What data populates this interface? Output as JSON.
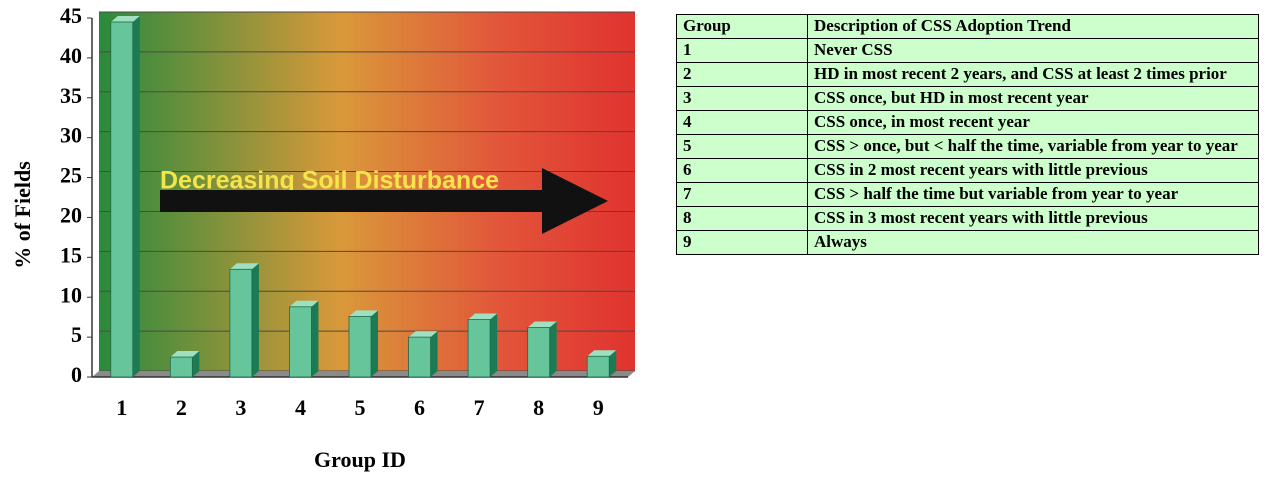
{
  "chart_data": {
    "type": "bar",
    "annotation": "Decreasing Soil Disturbance",
    "x_label": "Group ID",
    "y_label": "% of  Fields",
    "categories": [
      "1",
      "2",
      "3",
      "4",
      "5",
      "6",
      "7",
      "8",
      "9"
    ],
    "values": [
      44.5,
      2.5,
      13.5,
      8.8,
      7.6,
      5,
      7.2,
      6.2,
      2.6
    ],
    "color": "#66c59a",
    "ylim": [
      0,
      45
    ],
    "yticks": [
      0,
      5,
      10,
      15,
      20,
      25,
      30,
      35,
      40,
      45
    ],
    "grid": true
  },
  "table": {
    "header": [
      "Group",
      "Description of CSS Adoption Trend"
    ],
    "rows": [
      [
        "1",
        "Never CSS"
      ],
      [
        "2",
        "HD in most recent 2 years, and CSS at least 2 times prior"
      ],
      [
        "3",
        "CSS once, but HD in most recent year"
      ],
      [
        "4",
        "CSS once, in most recent year"
      ],
      [
        "5",
        "CSS > once, but < half the time, variable from year to year"
      ],
      [
        "6",
        "CSS in 2 most recent years with little previous"
      ],
      [
        "7",
        "CSS > half the time but variable from year to year"
      ],
      [
        "8",
        "CSS in 3 most recent years with little previous"
      ],
      [
        "9",
        "Always"
      ]
    ]
  }
}
